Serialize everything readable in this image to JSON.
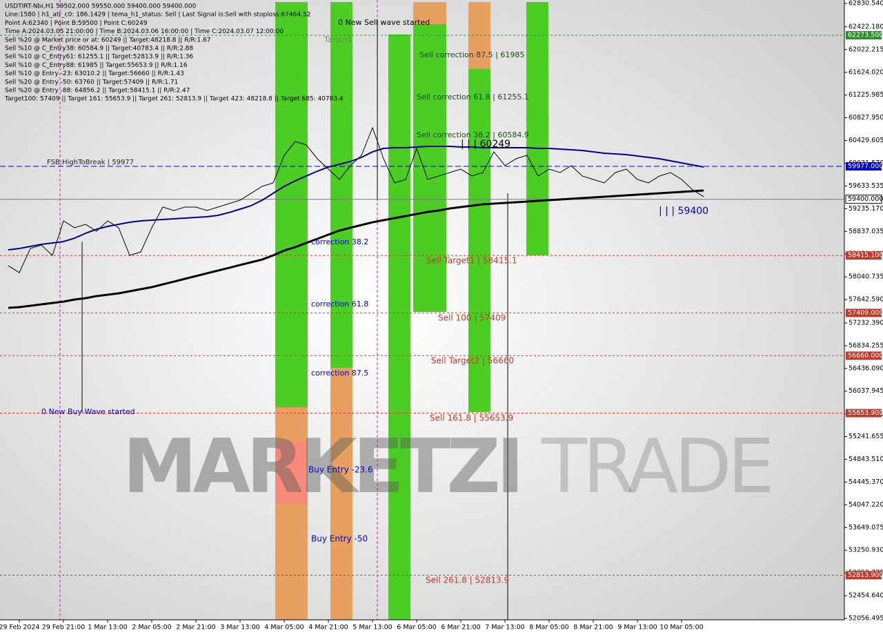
{
  "chart_data": {
    "type": "line",
    "info_lines": [
      "USDTIRT-Nbi,H1  59502.000 59550.000 59400.000 59400.000",
      "Line:1580 | h1_atr_c0: 186.1429 | tema_h1_status: Sell | Last Signal is:Sell with stoploss:67464.52",
      "Point A:62340 | Point B:59500 | Point C:60249",
      "Time A:2024.03.05 21:00:00 | Time B:2024.03.06 16:00:00 | Time C:2024.03.07 12:00:00",
      "Sell %20 @ Market price or at: 60249 || Target:48218.8 || R/R:1.67",
      "Sell %10 @ C_Entry38: 60584.9 || Target:40783.4 || R/R:2.88",
      "Sell %10 @ C_Entry61: 61255.1 || Target:52813.9 || R/R:1.36",
      "Sell %10 @ C_Entry88: 61985 || Target:55653.9 || R/R:1.16",
      "Sell %10 @ Entry -23: 63010.2 || Target:56660 || R/R:1.43",
      "Sell %20 @ Entry -50: 63760 || Target:57409 || R/R:1.71",
      "Sell %20 @ Entry -88: 64856.2 || Target:58415.1 || R/R:2.47",
      "Target100: 57409 || Target 161: 55653.9 || Target 261: 52813.9 || Target 423: 48218.8 || Target 685: 40783.4"
    ],
    "watermark": {
      "left": "MARKETZI",
      "right": "TRADE"
    },
    "categories": [
      null,
      "29 Feb 2024",
      null,
      null,
      null,
      "29 Feb 21:00",
      null,
      null,
      null,
      "1 Mar 13:00",
      null,
      null,
      null,
      "2 Mar 05:00",
      null,
      null,
      null,
      "2 Mar 21:00",
      null,
      null,
      null,
      "3 Mar 13:00",
      null,
      null,
      null,
      "4 Mar 05:00",
      null,
      null,
      null,
      "4 Mar 21:00",
      null,
      null,
      null,
      "5 Mar 13:00",
      null,
      null,
      null,
      "6 Mar 05:00",
      null,
      null,
      null,
      "6 Mar 21:00",
      null,
      null,
      null,
      "7 Mar 13:00",
      null,
      null,
      null,
      "8 Mar 05:00",
      null,
      null,
      null,
      "8 Mar 21:00",
      null,
      null,
      null,
      "9 Mar 13:00",
      null,
      null,
      null,
      "10 Mar 05:00",
      null,
      null
    ],
    "series": [
      {
        "color": "#000000",
        "values": [
          58236,
          58115,
          58538,
          58598,
          58417,
          59022,
          58901,
          58961,
          58840,
          59022,
          58901,
          58417,
          58477,
          58901,
          59263,
          59203,
          59263,
          59263,
          59203,
          59263,
          59324,
          59384,
          59505,
          59626,
          59687,
          60170,
          60412,
          60352,
          60110,
          59928,
          59747,
          59989,
          60170,
          60654,
          60110,
          59687,
          59747,
          60291,
          59747,
          59808,
          59868,
          59928,
          59808,
          59868,
          60231,
          59989,
          60110,
          60170,
          59808,
          59928,
          59868,
          59989,
          59808,
          59747,
          59687,
          59868,
          59928,
          59747,
          59687,
          59808,
          59868,
          59747,
          59566,
          59445
        ]
      },
      {
        "color": "#00008b",
        "values": [
          58514,
          58538,
          58574,
          58610,
          58635,
          58659,
          58719,
          58804,
          58876,
          58925,
          58961,
          58997,
          59022,
          59034,
          59046,
          59058,
          59070,
          59082,
          59094,
          59118,
          59167,
          59227,
          59288,
          59384,
          59505,
          59626,
          59723,
          59808,
          59892,
          59965,
          60013,
          60062,
          60134,
          60231,
          60291,
          60303,
          60303,
          60315,
          60327,
          60327,
          60327,
          60315,
          60315,
          60303,
          60303,
          60303,
          60303,
          60303,
          60291,
          60291,
          60279,
          60267,
          60255,
          60231,
          60207,
          60194,
          60182,
          60158,
          60134,
          60110,
          60074,
          60037,
          60001,
          59965
        ]
      },
      {
        "color": "#000000",
        "values": [
          57498,
          57510,
          57534,
          57558,
          57583,
          57607,
          57643,
          57667,
          57704,
          57728,
          57752,
          57788,
          57824,
          57861,
          57909,
          57957,
          58006,
          58054,
          58103,
          58151,
          58199,
          58248,
          58296,
          58344,
          58417,
          58502,
          58562,
          58635,
          58707,
          58780,
          58852,
          58901,
          58949,
          58997,
          59034,
          59070,
          59106,
          59142,
          59179,
          59203,
          59239,
          59263,
          59288,
          59312,
          59324,
          59336,
          59348,
          59360,
          59372,
          59384,
          59396,
          59408,
          59421,
          59433,
          59445,
          59457,
          59469,
          59481,
          59493,
          59505,
          59517,
          59529,
          59541,
          59554
        ]
      }
    ],
    "ylim": [
      52056.495,
      62830.54
    ],
    "yticks": [
      {
        "value": 62830.54,
        "label": "62830.540"
      },
      {
        "value": 62422.18,
        "label": "62422.180"
      },
      {
        "value": 62022.215,
        "label": "62022.215"
      },
      {
        "value": 61624.02,
        "label": "61624.020"
      },
      {
        "value": 61225.985,
        "label": "61225.985"
      },
      {
        "value": 60827.95,
        "label": "60827.950"
      },
      {
        "value": 60429.605,
        "label": "60429.605"
      },
      {
        "value": 60031.57,
        "label": "60031.570"
      },
      {
        "value": 59633.535,
        "label": "59633.535"
      },
      {
        "value": 59235.17,
        "label": "59235.170"
      },
      {
        "value": 58837.035,
        "label": "58837.035"
      },
      {
        "value": 58439,
        "label": "58439.000"
      },
      {
        "value": 58040.735,
        "label": "58040.735"
      },
      {
        "value": 57642.59,
        "label": "57642.590"
      },
      {
        "value": 57232.39,
        "label": "57232.390"
      },
      {
        "value": 56834.255,
        "label": "56834.255"
      },
      {
        "value": 56436.09,
        "label": "56436.090"
      },
      {
        "value": 56037.945,
        "label": "56037.945"
      },
      {
        "value": 55639.7,
        "label": "55639.700"
      },
      {
        "value": 55241.655,
        "label": "55241.655"
      },
      {
        "value": 54843.51,
        "label": "54843.510"
      },
      {
        "value": 54445.37,
        "label": "54445.370"
      },
      {
        "value": 54047.22,
        "label": "54047.220"
      },
      {
        "value": 53649.075,
        "label": "53649.075"
      },
      {
        "value": 53250.93,
        "label": "53250.930"
      },
      {
        "value": 52852.775,
        "label": "52852.775"
      },
      {
        "value": 52454.64,
        "label": "52454.640"
      },
      {
        "value": 52056.495,
        "label": "52056.495"
      }
    ],
    "levels": [
      {
        "value": 62273.5,
        "label": "62273.500",
        "color": "#2e8b2e"
      },
      {
        "value": 59977,
        "label": "59977.000",
        "color": "#0000cd"
      },
      {
        "value": 59400,
        "label": "59400.000",
        "color": "#777777"
      },
      {
        "value": 58415.1,
        "label": "58415.100",
        "color": "#c0392b"
      },
      {
        "value": 57409,
        "label": "57409.000",
        "color": "#c0392b"
      },
      {
        "value": 56660,
        "label": "56660.000",
        "color": "#c0392b"
      },
      {
        "value": 55653.9,
        "label": "55653.900",
        "color": "#c0392b"
      },
      {
        "value": 52813.9,
        "label": "52813.900",
        "color": "#c0392b"
      }
    ],
    "annotations": [
      "0 New Sell wave started",
      "Target1",
      "Sell correction 87.5 | 61985",
      "Sell correction 61.8 | 61255.1",
      "Sell correction 38.2 | 60584.9",
      "| | | 60249",
      "FSB:HighToBreak | 59977",
      "correction 38.2",
      "Sell Target1 | 58415.1",
      "correction 61.8",
      "Sell 100 | 57409",
      "Sell Target2 | 56660",
      "correction 87.5",
      "0 New Buy Wave started",
      "Sell 161.8 | 55653.9",
      "Buy Entry -23.6",
      "Buy Entry -50",
      "Sell 261.8 | 52813.9",
      "| | | 59400"
    ]
  }
}
